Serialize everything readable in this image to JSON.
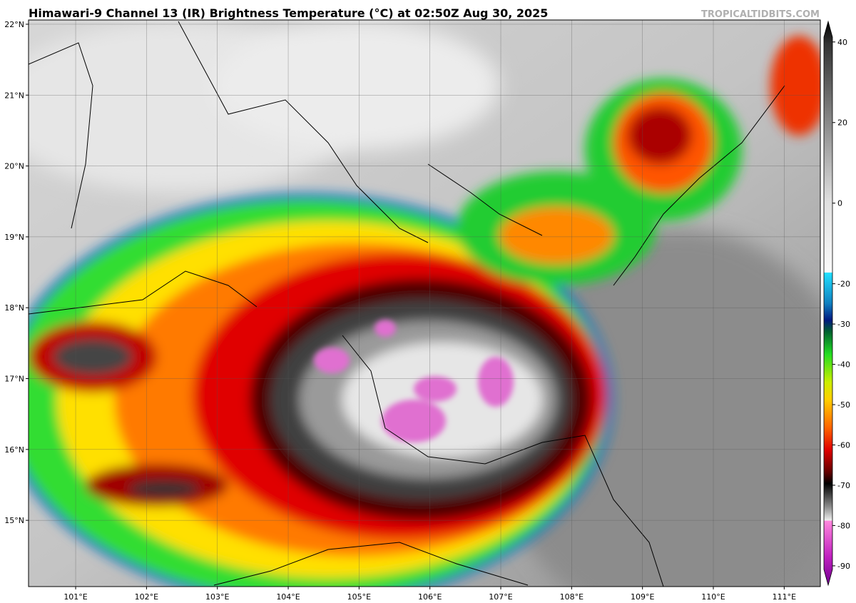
{
  "map": {
    "title": "Himawari-9 Channel 13 (IR) Brightness Temperature (°C) at 02:50Z Aug 30, 2025",
    "credit": "TROPICALTIDBITS.COM",
    "xlim": [
      100.335,
      111.51
    ],
    "ylim": [
      14.065,
      22.06
    ],
    "xticks": [
      {
        "value": 101,
        "label": "101°E"
      },
      {
        "value": 102,
        "label": "102°E"
      },
      {
        "value": 103,
        "label": "103°E"
      },
      {
        "value": 104,
        "label": "104°E"
      },
      {
        "value": 105,
        "label": "105°E"
      },
      {
        "value": 106,
        "label": "106°E"
      },
      {
        "value": 107,
        "label": "107°E"
      },
      {
        "value": 108,
        "label": "108°E"
      },
      {
        "value": 109,
        "label": "109°E"
      },
      {
        "value": 110,
        "label": "110°E"
      },
      {
        "value": 111,
        "label": "111°E"
      }
    ],
    "yticks": [
      {
        "value": 22,
        "label": "22°N"
      },
      {
        "value": 21,
        "label": "21°N"
      },
      {
        "value": 20,
        "label": "20°N"
      },
      {
        "value": 19,
        "label": "19°N"
      },
      {
        "value": 18,
        "label": "18°N"
      },
      {
        "value": 17,
        "label": "17°N"
      },
      {
        "value": 16,
        "label": "16°N"
      },
      {
        "value": 15,
        "label": "15°N"
      }
    ],
    "colorbar": {
      "lim": [
        -94.8,
        45.1
      ],
      "ticks": [
        40,
        20,
        0,
        -20,
        -30,
        -40,
        -50,
        -60,
        -70,
        -80,
        -90
      ]
    }
  }
}
